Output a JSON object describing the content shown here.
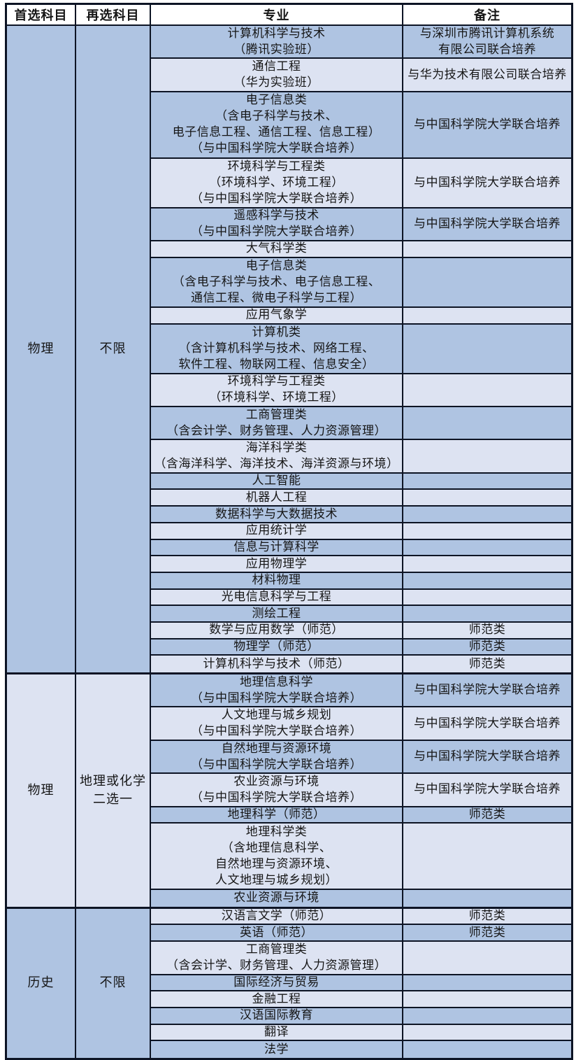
{
  "table": {
    "columns": [
      "首选科目",
      "再选科目",
      "专业",
      "备注"
    ],
    "colors": {
      "row_dark": "#afc4e2",
      "row_light": "#dde3f2",
      "border": "#0d1424",
      "header_bg": "#ffffff",
      "text": "#151515"
    },
    "sections": [
      {
        "first_subject": "物理",
        "reselect": "不限",
        "shade": "dark",
        "rows": [
          {
            "major": "计算机科学与技术\n（腾讯实验班）",
            "remark": "与深圳市腾讯计算机系统\n有限公司联合培养",
            "shade": "dark"
          },
          {
            "major": "通信工程\n（华为实验班）",
            "remark": "与华为技术有限公司联合培养",
            "shade": "light"
          },
          {
            "major": "电子信息类\n（含电子科学与技术、\n电子信息工程、通信工程、信息工程）\n（与中国科学院大学联合培养）",
            "remark": "与中国科学院大学联合培养",
            "shade": "dark"
          },
          {
            "major": "环境科学与工程类\n（环境科学、环境工程）\n（与中国科学院大学联合培养）",
            "remark": "与中国科学院大学联合培养",
            "shade": "light"
          },
          {
            "major": "遥感科学与技术\n（与中国科学院大学联合培养）",
            "remark": "与中国科学院大学联合培养",
            "shade": "dark"
          },
          {
            "major": "大气科学类",
            "remark": "",
            "shade": "light"
          },
          {
            "major": "电子信息类\n（含电子科学与技术、电子信息工程、\n通信工程、微电子科学与工程）",
            "remark": "",
            "shade": "dark"
          },
          {
            "major": "应用气象学",
            "remark": "",
            "shade": "light"
          },
          {
            "major": "计算机类\n（含计算机科学与技术、网络工程、\n软件工程、物联网工程、信息安全）",
            "remark": "",
            "shade": "dark"
          },
          {
            "major": "环境科学与工程类\n（环境科学、环境工程）",
            "remark": "",
            "shade": "light"
          },
          {
            "major": "工商管理类\n（含会计学、财务管理、人力资源管理）",
            "remark": "",
            "shade": "dark"
          },
          {
            "major": "海洋科学类\n（含海洋科学、海洋技术、海洋资源与环境）",
            "remark": "",
            "shade": "light"
          },
          {
            "major": "人工智能",
            "remark": "",
            "shade": "dark"
          },
          {
            "major": "机器人工程",
            "remark": "",
            "shade": "light"
          },
          {
            "major": "数据科学与大数据技术",
            "remark": "",
            "shade": "dark"
          },
          {
            "major": "应用统计学",
            "remark": "",
            "shade": "light"
          },
          {
            "major": "信息与计算科学",
            "remark": "",
            "shade": "dark"
          },
          {
            "major": "应用物理学",
            "remark": "",
            "shade": "light"
          },
          {
            "major": "材料物理",
            "remark": "",
            "shade": "dark"
          },
          {
            "major": "光电信息科学与工程",
            "remark": "",
            "shade": "light"
          },
          {
            "major": "测绘工程",
            "remark": "",
            "shade": "dark"
          },
          {
            "major": "数学与应用数学（师范）",
            "remark": "师范类",
            "shade": "light"
          },
          {
            "major": "物理学（师范）",
            "remark": "师范类",
            "shade": "dark"
          },
          {
            "major": "计算机科学与技术（师范）",
            "remark": "师范类",
            "shade": "light"
          }
        ]
      },
      {
        "first_subject": "物理",
        "reselect": "地理或化学\n二选一",
        "shade": "light",
        "rows": [
          {
            "major": "地理信息科学\n（与中国科学院大学联合培养）",
            "remark": "与中国科学院大学联合培养",
            "shade": "dark"
          },
          {
            "major": "人文地理与城乡规划\n（与中国科学院大学联合培养）",
            "remark": "与中国科学院大学联合培养",
            "shade": "light"
          },
          {
            "major": "自然地理与资源环境\n（与中国科学院大学联合培养）",
            "remark": "与中国科学院大学联合培养",
            "shade": "dark"
          },
          {
            "major": "农业资源与环境\n（与中国科学院大学联合培养）",
            "remark": "与中国科学院大学联合培养",
            "shade": "light"
          },
          {
            "major": "地理科学（师范）",
            "remark": "师范类",
            "shade": "dark"
          },
          {
            "major": "地理科学类\n（含地理信息科学、\n自然地理与资源环境、\n人文地理与城乡规划）",
            "remark": "",
            "shade": "light"
          },
          {
            "major": "农业资源与环境",
            "remark": "",
            "shade": "dark"
          }
        ]
      },
      {
        "first_subject": "历史",
        "reselect": "不限",
        "shade": "dark",
        "rows": [
          {
            "major": "汉语言文学（师范）",
            "remark": "师范类",
            "shade": "light"
          },
          {
            "major": "英语（师范）",
            "remark": "师范类",
            "shade": "dark"
          },
          {
            "major": "工商管理类\n（含会计学、财务管理、人力资源管理）",
            "remark": "",
            "shade": "light"
          },
          {
            "major": "国际经济与贸易",
            "remark": "",
            "shade": "dark"
          },
          {
            "major": "金融工程",
            "remark": "",
            "shade": "light"
          },
          {
            "major": "汉语国际教育",
            "remark": "",
            "shade": "dark"
          },
          {
            "major": "翻译",
            "remark": "",
            "shade": "light"
          },
          {
            "major": "法学",
            "remark": "",
            "shade": "dark"
          }
        ]
      }
    ]
  }
}
